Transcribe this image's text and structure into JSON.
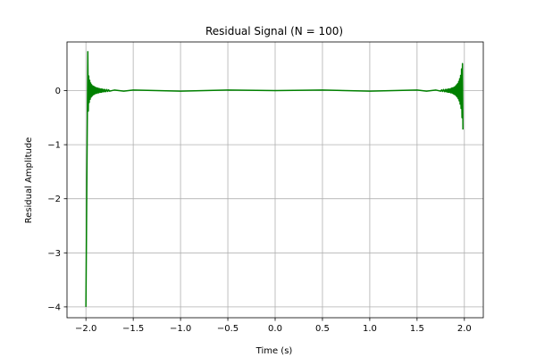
{
  "chart_data": {
    "type": "line",
    "title": "Residual Signal (N = 100)",
    "xlabel": "Time (s)",
    "ylabel": "Residual Amplitude",
    "xlim": [
      -2.2,
      2.2
    ],
    "ylim": [
      -4.2,
      0.9
    ],
    "grid": true,
    "xticks": [
      -2.0,
      -1.5,
      -1.0,
      -0.5,
      0.0,
      0.5,
      1.0,
      1.5,
      2.0
    ],
    "xtick_labels": [
      "−2.0",
      "−1.5",
      "−1.0",
      "−0.5",
      "0.0",
      "0.5",
      "1.0",
      "1.5",
      "2.0"
    ],
    "yticks": [
      0,
      -1,
      -2,
      -3,
      -4
    ],
    "ytick_labels": [
      "0",
      "−1",
      "−2",
      "−3",
      "−4"
    ],
    "series": [
      {
        "color": "#008000",
        "x": [
          -2.0,
          -1.98,
          -1.975,
          -1.97,
          -1.965,
          -1.96,
          -1.955,
          -1.95,
          -1.945,
          -1.94,
          -1.935,
          -1.93,
          -1.925,
          -1.92,
          -1.915,
          -1.91,
          -1.905,
          -1.9,
          -1.895,
          -1.89,
          -1.885,
          -1.88,
          -1.875,
          -1.87,
          -1.865,
          -1.86,
          -1.855,
          -1.85,
          -1.845,
          -1.84,
          -1.835,
          -1.83,
          -1.825,
          -1.82,
          -1.815,
          -1.81,
          -1.805,
          -1.8,
          -1.79,
          -1.78,
          -1.77,
          -1.76,
          -1.75,
          -1.7,
          -1.6,
          -1.5,
          -1.0,
          -0.5,
          0.0,
          0.5,
          1.0,
          1.5,
          1.6,
          1.7,
          1.75,
          1.76,
          1.77,
          1.78,
          1.79,
          1.8,
          1.805,
          1.81,
          1.815,
          1.82,
          1.825,
          1.83,
          1.835,
          1.84,
          1.845,
          1.85,
          1.855,
          1.86,
          1.865,
          1.87,
          1.875,
          1.88,
          1.885,
          1.89,
          1.895,
          1.9,
          1.905,
          1.91,
          1.915,
          1.92,
          1.925,
          1.93,
          1.935,
          1.94,
          1.945,
          1.95,
          1.955,
          1.96,
          1.965,
          1.97,
          1.975,
          1.98,
          1.985
        ],
        "y": [
          -4.0,
          0.72,
          -0.38,
          0.27,
          -0.22,
          0.19,
          -0.16,
          0.14,
          -0.12,
          0.11,
          -0.1,
          0.09,
          -0.08,
          0.08,
          -0.07,
          0.07,
          -0.06,
          0.06,
          -0.05,
          0.05,
          -0.05,
          0.05,
          -0.04,
          0.04,
          -0.04,
          0.04,
          -0.03,
          0.03,
          -0.03,
          0.03,
          -0.03,
          0.03,
          -0.02,
          0.02,
          -0.02,
          0.02,
          -0.02,
          0.02,
          -0.02,
          0.02,
          -0.015,
          0.015,
          -0.01,
          0.01,
          -0.01,
          0.01,
          -0.01,
          0.01,
          0.0,
          0.01,
          -0.01,
          0.01,
          -0.01,
          0.01,
          -0.01,
          0.015,
          -0.015,
          0.02,
          -0.02,
          0.02,
          -0.02,
          0.02,
          -0.02,
          0.02,
          -0.03,
          0.03,
          -0.03,
          0.03,
          -0.03,
          0.03,
          -0.04,
          0.04,
          -0.04,
          0.05,
          -0.05,
          0.05,
          -0.06,
          0.06,
          -0.07,
          0.07,
          -0.08,
          0.09,
          -0.1,
          0.11,
          -0.12,
          0.13,
          -0.15,
          0.17,
          -0.19,
          0.22,
          -0.25,
          0.28,
          -0.33,
          0.4,
          -0.5,
          0.5,
          -0.72
        ]
      }
    ]
  }
}
